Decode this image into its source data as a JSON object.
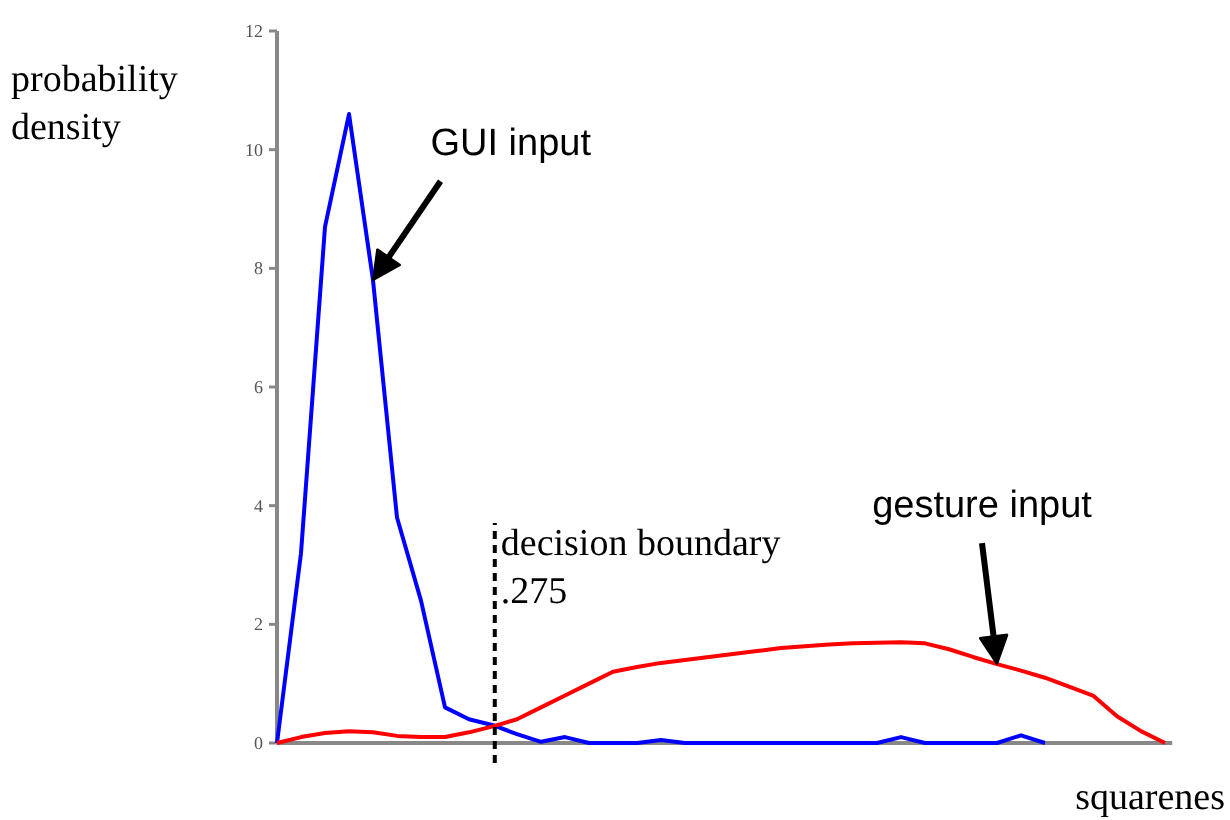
{
  "chart_data": {
    "type": "line",
    "xlabel": "squarenes",
    "ylabel": "probability\ndensity",
    "ylim": [
      0,
      12
    ],
    "yticks": [
      0,
      2,
      4,
      6,
      8,
      10,
      12
    ],
    "tick_labels": "y",
    "grid": false,
    "categories": [
      null,
      null,
      null,
      null,
      null,
      null,
      null,
      null,
      null,
      null,
      null,
      null,
      null,
      null,
      null,
      null,
      null,
      null,
      null,
      null,
      null,
      null,
      null,
      null,
      null,
      null,
      null,
      null,
      null,
      null,
      null,
      null,
      null,
      null,
      null,
      null,
      null,
      null
    ],
    "series": [
      {
        "name": "GUI input",
        "color": "#0000ff",
        "values": [
          0,
          3.2,
          8.7,
          10.6,
          7.8,
          3.8,
          2.4,
          0.6,
          0.4,
          0.3,
          0.15,
          0.02,
          0.1,
          0,
          0,
          0,
          0.05,
          0,
          0,
          0,
          0,
          0,
          0,
          0,
          0,
          0,
          0.1,
          0,
          0,
          0,
          0,
          0.13,
          0,
          null,
          null,
          null,
          null,
          null
        ]
      },
      {
        "name": "gesture input",
        "color": "#ff0000",
        "values": [
          0,
          0.1,
          0.17,
          0.2,
          0.18,
          0.12,
          0.1,
          0.1,
          0.18,
          0.28,
          0.4,
          0.6,
          0.8,
          1.0,
          1.2,
          1.28,
          1.35,
          1.4,
          1.45,
          1.5,
          1.55,
          1.6,
          1.63,
          1.66,
          1.68,
          1.69,
          1.7,
          1.68,
          1.58,
          1.45,
          1.33,
          1.22,
          1.1,
          0.95,
          0.8,
          0.45,
          0.2,
          0
        ]
      }
    ],
    "annotations": [
      "decision boundary\n.275"
    ]
  }
}
